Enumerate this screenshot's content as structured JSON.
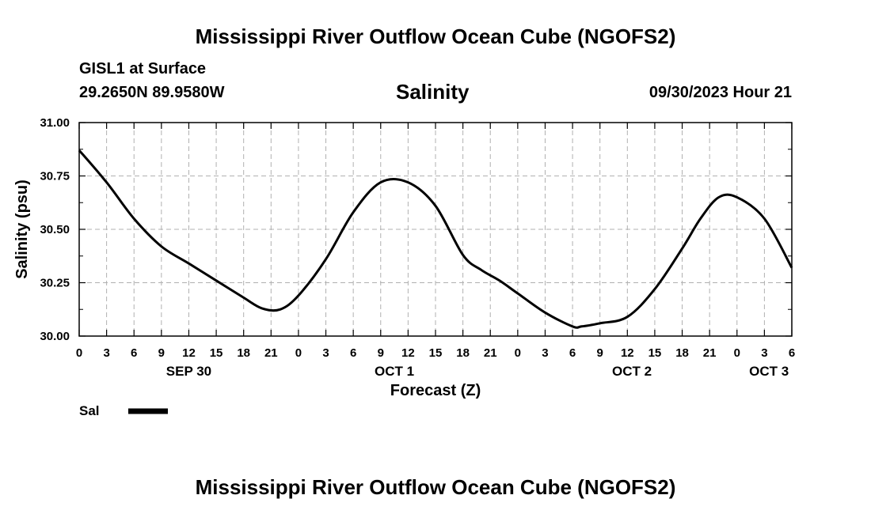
{
  "header": {
    "title": "Mississippi River Outflow Ocean Cube (NGOFS2)",
    "station": "GISL1 at Surface",
    "coords": "29.2650N  89.9580W",
    "chart_title": "Salinity",
    "datetime": "09/30/2023 Hour 21"
  },
  "footer": {
    "title": "Mississippi River Outflow Ocean Cube (NGOFS2)"
  },
  "chart_data": {
    "type": "line",
    "title": "Salinity",
    "xlabel": "Forecast (Z)",
    "ylabel": "Salinity (psu)",
    "ylim": [
      30.0,
      31.0
    ],
    "xlim": [
      0,
      78
    ],
    "grid": true,
    "y_ticks": [
      "30.00",
      "30.25",
      "30.50",
      "30.75",
      "31.00"
    ],
    "x_tick_labels": [
      "0",
      "3",
      "6",
      "9",
      "12",
      "15",
      "18",
      "21",
      "0",
      "3",
      "6",
      "9",
      "12",
      "15",
      "18",
      "21",
      "0",
      "3",
      "6",
      "9",
      "12",
      "15",
      "18",
      "21",
      "0",
      "3",
      "6"
    ],
    "day_labels": [
      {
        "label": "SEP 30",
        "hour": 12
      },
      {
        "label": "OCT 1",
        "hour": 34.5
      },
      {
        "label": "OCT 2",
        "hour": 60.5
      },
      {
        "label": "OCT 3",
        "hour": 75.5
      }
    ],
    "legend": {
      "label": "Sal",
      "position": "bottom-left"
    },
    "series": [
      {
        "name": "Sal",
        "x": [
          0,
          3,
          6,
          9,
          12,
          15,
          18,
          20,
          22,
          24,
          27,
          30,
          33,
          36,
          39,
          42,
          44,
          46,
          48,
          51,
          54,
          55,
          57,
          60,
          63,
          66,
          68,
          70,
          72,
          75,
          78
        ],
        "values": [
          30.87,
          30.72,
          30.55,
          30.42,
          30.34,
          30.26,
          30.18,
          30.13,
          30.125,
          30.19,
          30.36,
          30.58,
          30.72,
          30.72,
          30.61,
          30.38,
          30.31,
          30.26,
          30.2,
          30.11,
          30.045,
          30.045,
          30.06,
          30.09,
          30.22,
          30.41,
          30.55,
          30.65,
          30.65,
          30.55,
          30.32
        ]
      }
    ]
  }
}
